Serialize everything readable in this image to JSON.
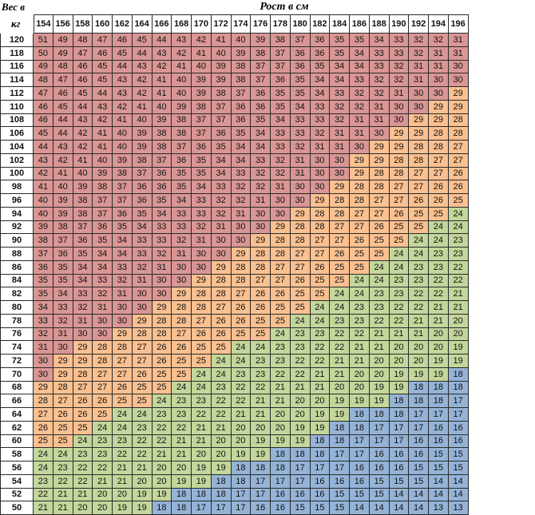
{
  "corner": {
    "line1": "Вес в",
    "line2": "кг"
  },
  "title": "Рост в см",
  "heights": [
    154,
    156,
    158,
    160,
    162,
    164,
    166,
    168,
    170,
    172,
    174,
    176,
    178,
    180,
    182,
    184,
    186,
    188,
    190,
    192,
    194,
    196
  ],
  "weights": [
    120,
    118,
    116,
    114,
    112,
    110,
    108,
    106,
    104,
    102,
    100,
    98,
    96,
    94,
    92,
    90,
    88,
    86,
    84,
    82,
    80,
    78,
    76,
    74,
    72,
    70,
    68,
    66,
    64,
    62,
    60,
    58,
    56,
    54,
    52,
    50
  ],
  "colors": {
    "red": "#d99694",
    "orange": "#fac090",
    "green": "#c3d69b",
    "blue": "#95b3d7"
  },
  "bands": "Цвет ячейки зависит от значения: ≥30 красный, 25–29 оранжевый, 19–24 зелёный, ≤18 синий",
  "rows": [
    [
      51,
      49,
      48,
      47,
      46,
      45,
      44,
      43,
      42,
      41,
      40,
      39,
      38,
      37,
      36,
      35,
      35,
      34,
      33,
      32,
      32,
      31
    ],
    [
      50,
      49,
      47,
      46,
      45,
      44,
      43,
      42,
      41,
      40,
      39,
      38,
      37,
      36,
      36,
      35,
      34,
      33,
      33,
      32,
      31,
      31
    ],
    [
      49,
      48,
      46,
      45,
      44,
      43,
      42,
      41,
      40,
      39,
      38,
      37,
      37,
      36,
      35,
      34,
      34,
      33,
      32,
      31,
      31,
      30
    ],
    [
      48,
      47,
      46,
      45,
      43,
      42,
      41,
      40,
      39,
      39,
      38,
      37,
      36,
      35,
      34,
      34,
      33,
      32,
      32,
      31,
      30,
      30
    ],
    [
      47,
      46,
      45,
      44,
      43,
      42,
      41,
      40,
      39,
      38,
      37,
      36,
      35,
      35,
      34,
      33,
      32,
      32,
      31,
      30,
      30,
      29
    ],
    [
      46,
      45,
      44,
      43,
      42,
      41,
      40,
      39,
      38,
      37,
      36,
      36,
      35,
      34,
      33,
      32,
      32,
      31,
      30,
      30,
      29,
      29
    ],
    [
      46,
      44,
      43,
      42,
      41,
      40,
      39,
      38,
      37,
      37,
      36,
      35,
      34,
      33,
      33,
      32,
      31,
      31,
      30,
      29,
      29,
      28
    ],
    [
      45,
      44,
      42,
      41,
      40,
      39,
      38,
      38,
      37,
      36,
      35,
      34,
      33,
      33,
      32,
      31,
      31,
      30,
      29,
      29,
      28,
      28
    ],
    [
      44,
      43,
      42,
      41,
      40,
      39,
      38,
      37,
      36,
      35,
      34,
      34,
      33,
      32,
      31,
      31,
      30,
      29,
      29,
      28,
      28,
      27
    ],
    [
      43,
      42,
      41,
      40,
      39,
      38,
      37,
      36,
      35,
      34,
      34,
      33,
      32,
      31,
      30,
      30,
      29,
      29,
      28,
      28,
      27,
      27
    ],
    [
      42,
      41,
      40,
      39,
      38,
      37,
      36,
      35,
      35,
      34,
      33,
      32,
      32,
      31,
      30,
      30,
      29,
      28,
      28,
      27,
      27,
      26
    ],
    [
      41,
      40,
      39,
      38,
      37,
      36,
      36,
      35,
      34,
      33,
      32,
      32,
      31,
      30,
      30,
      29,
      28,
      28,
      27,
      27,
      26,
      26
    ],
    [
      40,
      39,
      38,
      37,
      37,
      36,
      35,
      34,
      33,
      32,
      32,
      31,
      30,
      30,
      29,
      28,
      28,
      27,
      27,
      26,
      26,
      25
    ],
    [
      40,
      39,
      38,
      37,
      36,
      35,
      34,
      33,
      33,
      32,
      31,
      30,
      30,
      29,
      28,
      28,
      27,
      27,
      26,
      25,
      25,
      24
    ],
    [
      39,
      38,
      37,
      36,
      35,
      34,
      33,
      33,
      32,
      31,
      30,
      30,
      29,
      28,
      28,
      27,
      27,
      26,
      25,
      25,
      24,
      24
    ],
    [
      38,
      37,
      36,
      35,
      34,
      33,
      33,
      32,
      31,
      30,
      30,
      29,
      28,
      28,
      27,
      27,
      26,
      25,
      25,
      24,
      24,
      23
    ],
    [
      37,
      36,
      35,
      34,
      34,
      33,
      32,
      31,
      30,
      30,
      29,
      28,
      28,
      27,
      27,
      26,
      25,
      25,
      24,
      24,
      23,
      23
    ],
    [
      36,
      35,
      34,
      34,
      33,
      32,
      31,
      30,
      30,
      29,
      28,
      28,
      27,
      27,
      26,
      25,
      25,
      24,
      24,
      23,
      23,
      22
    ],
    [
      35,
      35,
      34,
      33,
      32,
      31,
      30,
      30,
      29,
      28,
      28,
      27,
      27,
      26,
      25,
      25,
      24,
      24,
      23,
      23,
      22,
      22
    ],
    [
      35,
      34,
      33,
      32,
      31,
      30,
      30,
      29,
      28,
      28,
      27,
      26,
      26,
      25,
      25,
      24,
      24,
      23,
      23,
      22,
      22,
      21
    ],
    [
      34,
      33,
      32,
      31,
      30,
      30,
      29,
      28,
      28,
      27,
      26,
      26,
      25,
      25,
      24,
      24,
      23,
      23,
      22,
      22,
      21,
      21
    ],
    [
      33,
      32,
      31,
      30,
      30,
      29,
      28,
      28,
      27,
      26,
      26,
      25,
      25,
      24,
      24,
      23,
      23,
      22,
      22,
      21,
      21,
      20
    ],
    [
      32,
      31,
      30,
      30,
      29,
      28,
      28,
      27,
      26,
      26,
      25,
      25,
      24,
      23,
      23,
      22,
      22,
      21,
      21,
      21,
      20,
      20
    ],
    [
      31,
      30,
      29,
      28,
      28,
      27,
      26,
      26,
      25,
      25,
      24,
      24,
      23,
      23,
      22,
      22,
      21,
      21,
      20,
      20,
      20,
      19
    ],
    [
      30,
      29,
      29,
      28,
      27,
      27,
      26,
      25,
      25,
      24,
      24,
      23,
      23,
      22,
      22,
      21,
      21,
      20,
      20,
      20,
      19,
      19
    ],
    [
      30,
      29,
      28,
      27,
      27,
      26,
      25,
      25,
      24,
      24,
      23,
      23,
      22,
      22,
      21,
      21,
      20,
      20,
      19,
      19,
      19,
      18
    ],
    [
      29,
      28,
      27,
      27,
      26,
      25,
      25,
      24,
      24,
      23,
      22,
      22,
      21,
      21,
      21,
      20,
      20,
      19,
      19,
      18,
      18,
      18
    ],
    [
      28,
      27,
      26,
      26,
      25,
      25,
      24,
      23,
      23,
      22,
      22,
      21,
      21,
      20,
      20,
      19,
      19,
      19,
      18,
      18,
      18,
      17
    ],
    [
      27,
      26,
      26,
      25,
      24,
      24,
      23,
      23,
      22,
      22,
      21,
      21,
      20,
      20,
      19,
      19,
      18,
      18,
      18,
      17,
      17,
      17
    ],
    [
      26,
      25,
      25,
      24,
      24,
      23,
      22,
      22,
      21,
      21,
      20,
      20,
      20,
      19,
      19,
      18,
      18,
      17,
      17,
      17,
      16,
      16
    ],
    [
      25,
      25,
      24,
      23,
      23,
      22,
      22,
      21,
      21,
      20,
      20,
      19,
      19,
      19,
      18,
      18,
      17,
      17,
      17,
      16,
      16,
      16
    ],
    [
      24,
      24,
      23,
      23,
      22,
      22,
      21,
      21,
      20,
      20,
      19,
      19,
      18,
      18,
      18,
      17,
      17,
      16,
      16,
      16,
      15,
      15
    ],
    [
      24,
      23,
      22,
      22,
      21,
      21,
      20,
      20,
      19,
      19,
      18,
      18,
      18,
      17,
      17,
      17,
      16,
      16,
      16,
      15,
      15,
      15
    ],
    [
      23,
      22,
      22,
      21,
      21,
      20,
      20,
      19,
      19,
      18,
      18,
      17,
      17,
      17,
      16,
      16,
      16,
      15,
      15,
      15,
      14,
      14
    ],
    [
      22,
      21,
      21,
      20,
      20,
      19,
      19,
      18,
      18,
      18,
      17,
      17,
      16,
      16,
      16,
      15,
      15,
      15,
      14,
      14,
      14,
      14
    ],
    [
      21,
      21,
      20,
      20,
      19,
      19,
      18,
      18,
      17,
      17,
      17,
      16,
      16,
      15,
      15,
      15,
      14,
      14,
      14,
      14,
      13,
      13
    ]
  ]
}
